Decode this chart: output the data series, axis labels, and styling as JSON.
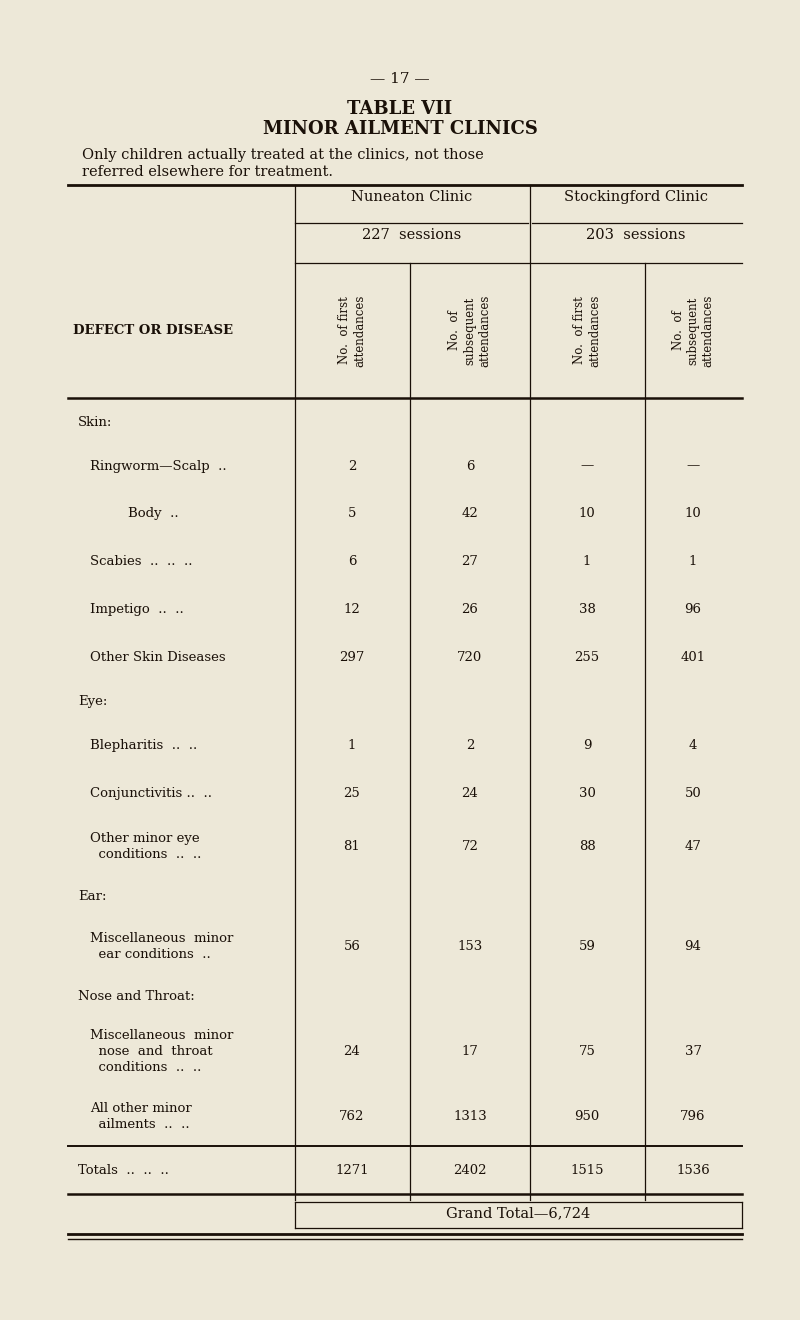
{
  "page_number": "— 17 —",
  "title1": "TABLE VII",
  "title2": "MINOR AILMENT CLINICS",
  "subtitle_line1": "Only children actually treated at the clinics, not those",
  "subtitle_line2": "referred elsewhere for treatment.",
  "clinic1_name": "Nuneaton Clinic",
  "clinic2_name": "Stockingford Clinic",
  "clinic1_sessions": "227  sessions",
  "clinic2_sessions": "203  sessions",
  "bg_color": "#ede8d8",
  "text_color": "#1a1008",
  "rows": [
    {
      "label": "Skin:",
      "category": true,
      "indent": 0,
      "v": [
        "",
        "",
        "",
        ""
      ]
    },
    {
      "label": "Ringworm—Scalp  ..",
      "category": false,
      "indent": 1,
      "v": [
        "2",
        "6",
        "—",
        "—"
      ]
    },
    {
      "label": "Body  ..",
      "category": false,
      "indent": 2,
      "v": [
        "5",
        "42",
        "10",
        "10"
      ]
    },
    {
      "label": "Scabies  ..  ..  ..",
      "category": false,
      "indent": 1,
      "v": [
        "6",
        "27",
        "1",
        "1"
      ]
    },
    {
      "label": "Impetigo  ..  ..",
      "category": false,
      "indent": 1,
      "v": [
        "12",
        "26",
        "38",
        "96"
      ]
    },
    {
      "label": "Other Skin Diseases",
      "category": false,
      "indent": 1,
      "v": [
        "297",
        "720",
        "255",
        "401"
      ]
    },
    {
      "label": "Eye:",
      "category": true,
      "indent": 0,
      "v": [
        "",
        "",
        "",
        ""
      ]
    },
    {
      "label": "Blepharitis  ..  ..",
      "category": false,
      "indent": 1,
      "v": [
        "1",
        "2",
        "9",
        "4"
      ]
    },
    {
      "label": "Conjunctivitis ..  ..",
      "category": false,
      "indent": 1,
      "v": [
        "25",
        "24",
        "30",
        "50"
      ]
    },
    {
      "label": "Other minor eye\n  conditions  ..  ..",
      "category": false,
      "indent": 1,
      "v": [
        "81",
        "72",
        "88",
        "47"
      ]
    },
    {
      "label": "Ear:",
      "category": true,
      "indent": 0,
      "v": [
        "",
        "",
        "",
        ""
      ]
    },
    {
      "label": "Miscellaneous  minor\n  ear conditions  ..",
      "category": false,
      "indent": 1,
      "v": [
        "56",
        "153",
        "59",
        "94"
      ]
    },
    {
      "label": "Nose and Throat:",
      "category": true,
      "indent": 0,
      "v": [
        "",
        "",
        "",
        ""
      ]
    },
    {
      "label": "Miscellaneous  minor\n  nose  and  throat\n  conditions  ..  ..",
      "category": false,
      "indent": 1,
      "v": [
        "24",
        "17",
        "75",
        "37"
      ]
    },
    {
      "label": "All other minor\n  ailments  ..  ..",
      "category": false,
      "indent": 1,
      "v": [
        "762",
        "1313",
        "950",
        "796"
      ]
    },
    {
      "label": "Totals  ..  ..  ..",
      "category": false,
      "indent": 0,
      "totals": true,
      "v": [
        "1271",
        "2402",
        "1515",
        "1536"
      ]
    }
  ],
  "grand_total": "Grand Total—6,724"
}
